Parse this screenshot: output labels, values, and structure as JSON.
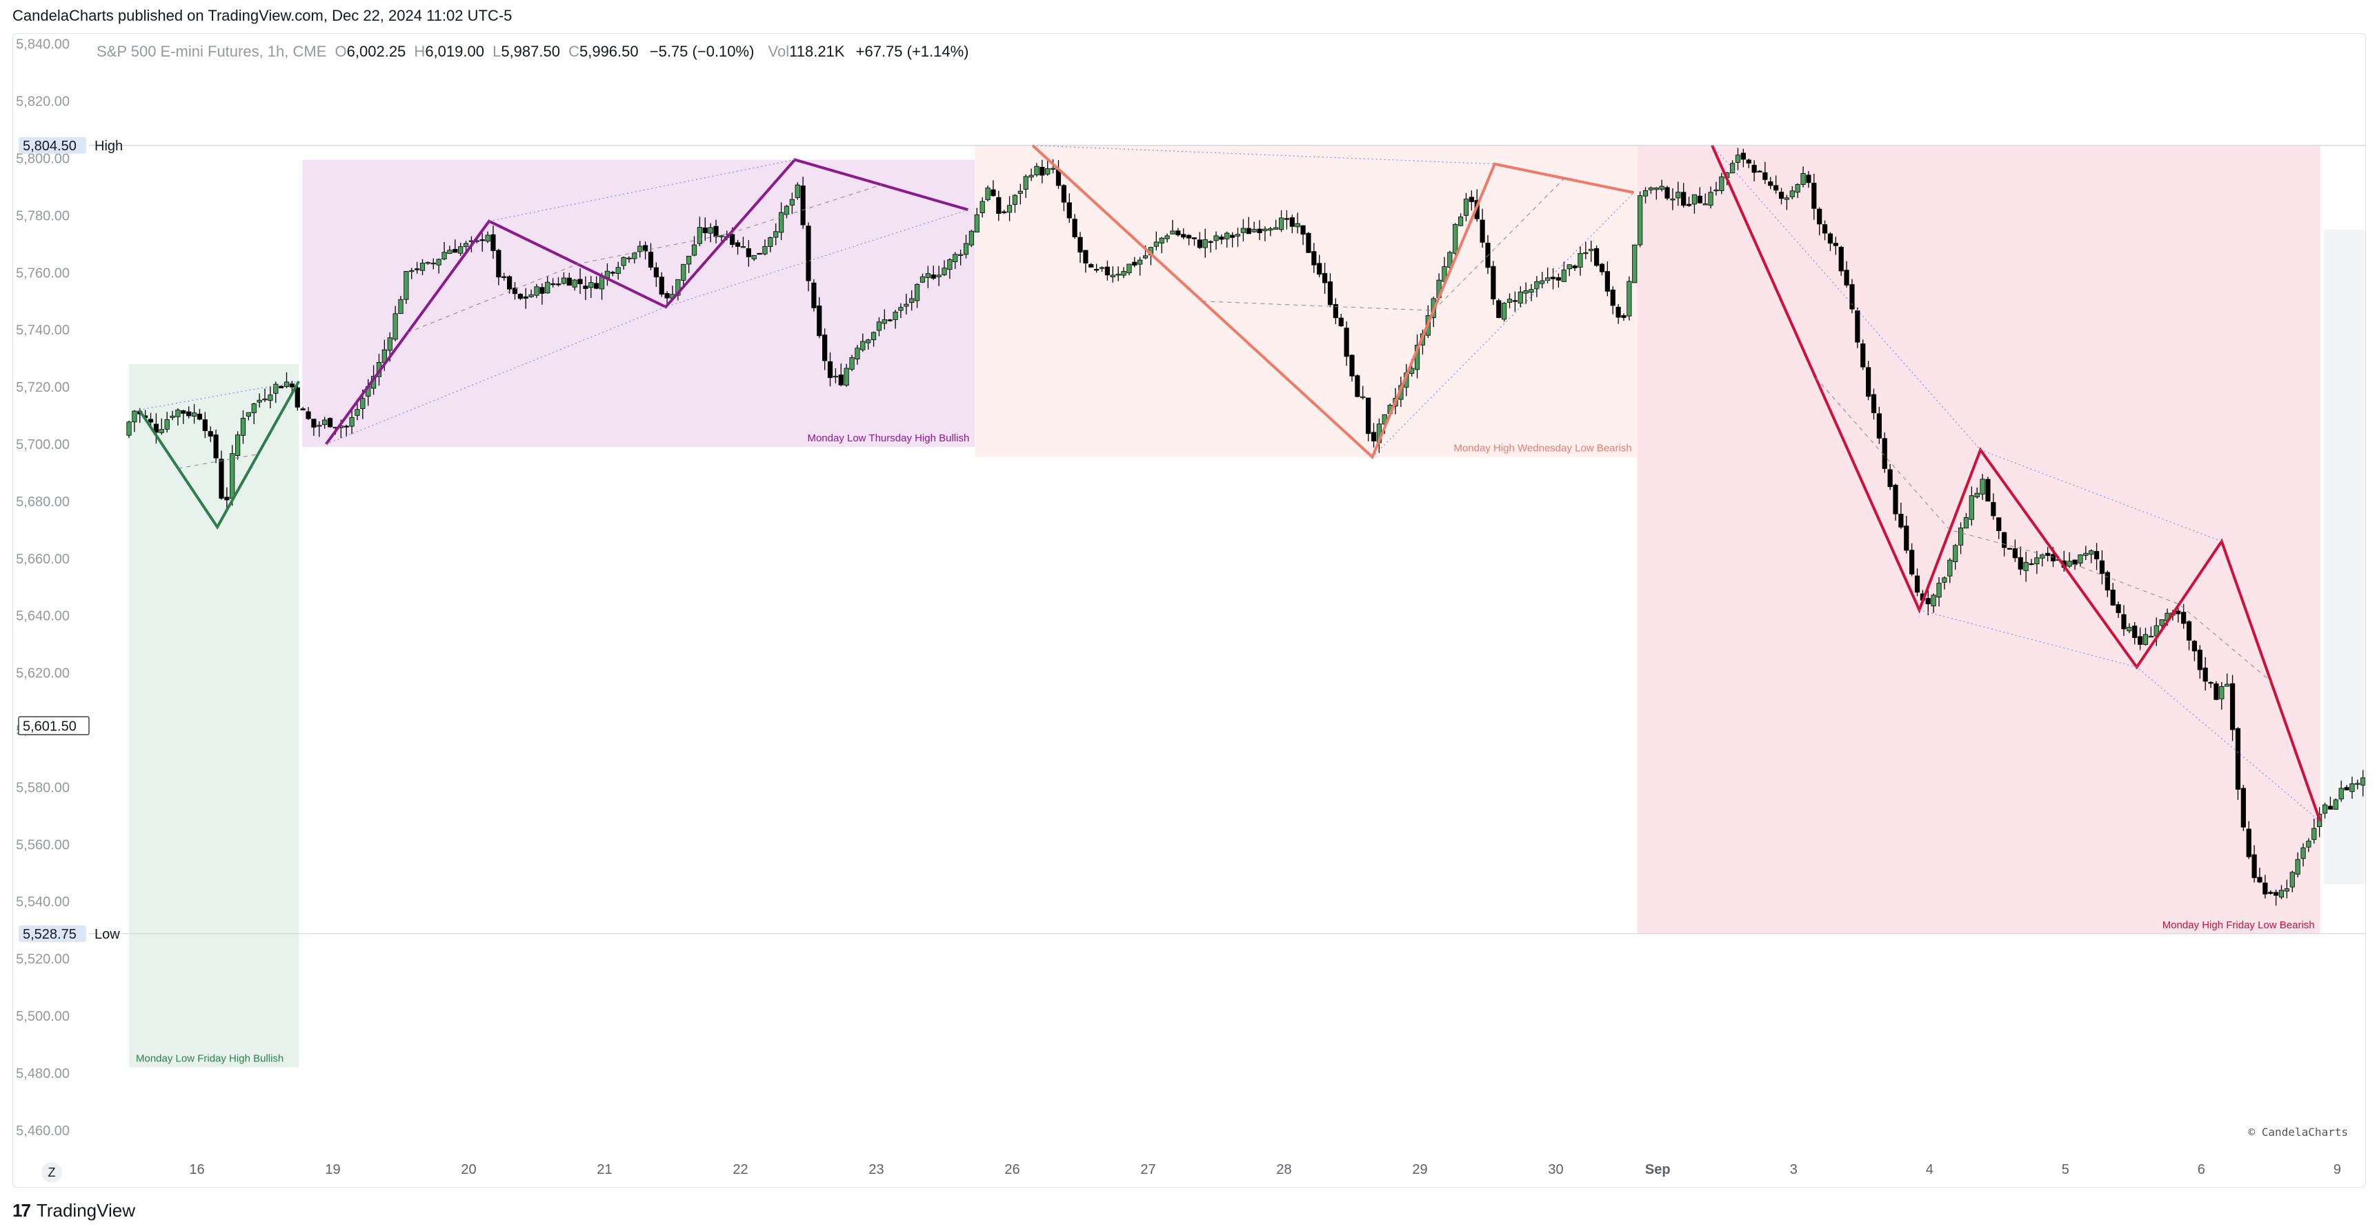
{
  "header": {
    "published": "CandelaCharts published on TradingView.com, Dec 22, 2024 11:02 UTC-5"
  },
  "legend": {
    "symbol": "S&P 500 E-mini Futures, 1h, CME",
    "o_label": "O",
    "o_value": "6,002.25",
    "h_label": "H",
    "h_value": "6,019.00",
    "l_label": "L",
    "l_value": "5,987.50",
    "c_label": "C",
    "c_value": "5,996.50",
    "change": "−5.75 (−0.10%)",
    "vol_label": "Vol",
    "vol_value": "118.21K",
    "vol_change": "+67.75 (+1.14%)"
  },
  "footer": {
    "logo": "17",
    "brand": "TradingView",
    "zoom_button": "Z"
  },
  "credit": "© CandelaCharts",
  "colors": {
    "up": "#4a9d5b",
    "down": "#000000",
    "green": "#2e7d4f",
    "purple": "#8b1a8b",
    "salmon": "#f07a6a",
    "crimson": "#d0103a"
  },
  "chart_data": {
    "type": "candlestick",
    "title": "S&P 500 E-mini Futures, 1h, CME",
    "ylim": [
      5450,
      5845
    ],
    "y_ticks": [
      5460,
      5480,
      5500,
      5520,
      5540,
      5560,
      5580,
      5600,
      5620,
      5640,
      5660,
      5680,
      5700,
      5720,
      5740,
      5760,
      5780,
      5800,
      5820,
      5840
    ],
    "y_tick_labels": [
      "5,460.00",
      "5,480.00",
      "5,500.00",
      "5,520.00",
      "5,540.00",
      "5,560.00",
      "5,580.00",
      "5,600.00",
      "5,620.00",
      "5,640.00",
      "5,660.00",
      "5,680.00",
      "5,700.00",
      "5,720.00",
      "5,740.00",
      "5,760.00",
      "5,780.00",
      "5,800.00",
      "5,820.00",
      "5,840.00"
    ],
    "x_ticks": [
      {
        "t": 1.0,
        "label": "16"
      },
      {
        "t": 3.0,
        "label": "19"
      },
      {
        "t": 5.0,
        "label": "20"
      },
      {
        "t": 7.0,
        "label": "21"
      },
      {
        "t": 9.0,
        "label": "22"
      },
      {
        "t": 11.0,
        "label": "23"
      },
      {
        "t": 13.0,
        "label": "26"
      },
      {
        "t": 15.0,
        "label": "27"
      },
      {
        "t": 17.0,
        "label": "28"
      },
      {
        "t": 19.0,
        "label": "29"
      },
      {
        "t": 21.0,
        "label": "30"
      },
      {
        "t": 22.5,
        "label": "Sep"
      },
      {
        "t": 24.5,
        "label": "3"
      },
      {
        "t": 26.5,
        "label": "4"
      },
      {
        "t": 28.5,
        "label": "5"
      },
      {
        "t": 30.5,
        "label": "6"
      },
      {
        "t": 32.5,
        "label": "9"
      }
    ],
    "levels": [
      {
        "name": "High",
        "value": 5804.5,
        "label": "5,804.50"
      },
      {
        "name": "Low",
        "value": 5528.75,
        "label": "5,528.75"
      }
    ],
    "current_price": {
      "value": 5601.5,
      "label": "5,601.50"
    },
    "anchors": [
      {
        "t": 0.0,
        "p": 5703
      },
      {
        "t": 0.15,
        "p": 5712
      },
      {
        "t": 0.5,
        "p": 5705
      },
      {
        "t": 0.75,
        "p": 5712
      },
      {
        "t": 1.15,
        "p": 5710
      },
      {
        "t": 1.38,
        "p": 5694
      },
      {
        "t": 1.45,
        "p": 5680
      },
      {
        "t": 1.5,
        "p": 5678
      },
      {
        "t": 1.6,
        "p": 5695
      },
      {
        "t": 1.75,
        "p": 5710
      },
      {
        "t": 2.2,
        "p": 5720
      },
      {
        "t": 2.45,
        "p": 5722
      },
      {
        "t": 2.6,
        "p": 5712
      },
      {
        "t": 2.8,
        "p": 5706
      },
      {
        "t": 3.0,
        "p": 5708
      },
      {
        "t": 3.3,
        "p": 5706
      },
      {
        "t": 3.5,
        "p": 5715
      },
      {
        "t": 3.8,
        "p": 5730
      },
      {
        "t": 4.0,
        "p": 5745
      },
      {
        "t": 4.2,
        "p": 5762
      },
      {
        "t": 4.5,
        "p": 5762
      },
      {
        "t": 4.75,
        "p": 5768
      },
      {
        "t": 5.2,
        "p": 5770
      },
      {
        "t": 5.35,
        "p": 5775
      },
      {
        "t": 5.5,
        "p": 5760
      },
      {
        "t": 5.8,
        "p": 5750
      },
      {
        "t": 6.2,
        "p": 5755
      },
      {
        "t": 6.5,
        "p": 5758
      },
      {
        "t": 6.9,
        "p": 5755
      },
      {
        "t": 7.2,
        "p": 5762
      },
      {
        "t": 7.6,
        "p": 5770
      },
      {
        "t": 8.0,
        "p": 5750
      },
      {
        "t": 8.3,
        "p": 5765
      },
      {
        "t": 8.5,
        "p": 5775
      },
      {
        "t": 8.9,
        "p": 5773
      },
      {
        "t": 9.3,
        "p": 5765
      },
      {
        "t": 9.7,
        "p": 5780
      },
      {
        "t": 9.95,
        "p": 5790
      },
      {
        "t": 10.05,
        "p": 5762
      },
      {
        "t": 10.2,
        "p": 5740
      },
      {
        "t": 10.4,
        "p": 5723
      },
      {
        "t": 10.55,
        "p": 5722
      },
      {
        "t": 10.8,
        "p": 5735
      },
      {
        "t": 11.2,
        "p": 5743
      },
      {
        "t": 11.5,
        "p": 5748
      },
      {
        "t": 11.8,
        "p": 5758
      },
      {
        "t": 12.1,
        "p": 5762
      },
      {
        "t": 12.4,
        "p": 5770
      },
      {
        "t": 12.7,
        "p": 5790
      },
      {
        "t": 12.9,
        "p": 5780
      },
      {
        "t": 13.1,
        "p": 5785
      },
      {
        "t": 13.35,
        "p": 5796
      },
      {
        "t": 13.7,
        "p": 5795
      },
      {
        "t": 13.95,
        "p": 5775
      },
      {
        "t": 14.2,
        "p": 5760
      },
      {
        "t": 14.6,
        "p": 5760
      },
      {
        "t": 15.0,
        "p": 5765
      },
      {
        "t": 15.4,
        "p": 5775
      },
      {
        "t": 15.8,
        "p": 5770
      },
      {
        "t": 16.2,
        "p": 5772
      },
      {
        "t": 16.6,
        "p": 5775
      },
      {
        "t": 17.0,
        "p": 5778
      },
      {
        "t": 17.3,
        "p": 5775
      },
      {
        "t": 17.6,
        "p": 5760
      },
      {
        "t": 17.9,
        "p": 5742
      },
      {
        "t": 18.1,
        "p": 5720
      },
      {
        "t": 18.25,
        "p": 5715
      },
      {
        "t": 18.35,
        "p": 5700
      },
      {
        "t": 18.6,
        "p": 5710
      },
      {
        "t": 19.0,
        "p": 5730
      },
      {
        "t": 19.4,
        "p": 5760
      },
      {
        "t": 19.8,
        "p": 5790
      },
      {
        "t": 20.0,
        "p": 5770
      },
      {
        "t": 20.2,
        "p": 5745
      },
      {
        "t": 20.5,
        "p": 5752
      },
      {
        "t": 20.8,
        "p": 5755
      },
      {
        "t": 21.2,
        "p": 5760
      },
      {
        "t": 21.6,
        "p": 5768
      },
      {
        "t": 21.9,
        "p": 5752
      },
      {
        "t": 22.05,
        "p": 5740
      },
      {
        "t": 22.2,
        "p": 5765
      },
      {
        "t": 22.35,
        "p": 5790
      },
      {
        "t": 22.7,
        "p": 5788
      },
      {
        "t": 23.0,
        "p": 5785
      },
      {
        "t": 23.3,
        "p": 5786
      },
      {
        "t": 23.6,
        "p": 5795
      },
      {
        "t": 23.8,
        "p": 5801
      },
      {
        "t": 24.0,
        "p": 5797
      },
      {
        "t": 24.2,
        "p": 5789
      },
      {
        "t": 24.5,
        "p": 5787
      },
      {
        "t": 24.75,
        "p": 5795
      },
      {
        "t": 24.95,
        "p": 5776
      },
      {
        "t": 25.2,
        "p": 5770
      },
      {
        "t": 25.4,
        "p": 5750
      },
      {
        "t": 25.7,
        "p": 5715
      },
      {
        "t": 25.95,
        "p": 5690
      },
      {
        "t": 26.15,
        "p": 5670
      },
      {
        "t": 26.4,
        "p": 5648
      },
      {
        "t": 26.6,
        "p": 5645
      },
      {
        "t": 26.9,
        "p": 5660
      },
      {
        "t": 27.2,
        "p": 5680
      },
      {
        "t": 27.35,
        "p": 5688
      },
      {
        "t": 27.6,
        "p": 5668
      },
      {
        "t": 27.9,
        "p": 5656
      },
      {
        "t": 28.2,
        "p": 5660
      },
      {
        "t": 28.6,
        "p": 5658
      },
      {
        "t": 29.0,
        "p": 5662
      },
      {
        "t": 29.2,
        "p": 5650
      },
      {
        "t": 29.45,
        "p": 5636
      },
      {
        "t": 29.7,
        "p": 5630
      },
      {
        "t": 29.95,
        "p": 5638
      },
      {
        "t": 30.25,
        "p": 5640
      },
      {
        "t": 30.55,
        "p": 5622
      },
      {
        "t": 30.8,
        "p": 5612
      },
      {
        "t": 30.95,
        "p": 5620
      },
      {
        "t": 31.15,
        "p": 5572
      },
      {
        "t": 31.35,
        "p": 5548
      },
      {
        "t": 31.55,
        "p": 5544
      },
      {
        "t": 31.75,
        "p": 5543
      },
      {
        "t": 31.95,
        "p": 5550
      },
      {
        "t": 32.15,
        "p": 5562
      },
      {
        "t": 32.4,
        "p": 5572
      },
      {
        "t": 32.7,
        "p": 5580
      },
      {
        "t": 33.0,
        "p": 5583
      },
      {
        "t": 33.25,
        "p": 5585
      },
      {
        "t": 33.45,
        "p": 5598
      },
      {
        "t": 33.65,
        "p": 5605
      },
      {
        "t": 33.9,
        "p": 5601.5
      }
    ],
    "ranges": [
      {
        "t0": 0.0,
        "t1": 2.5,
        "p0": 5482,
        "p1": 5728,
        "fill": "#e7f2ec",
        "label": "Monday Low Friday High Bullish",
        "label_color": "#2e7d4f",
        "zigzag": [
          [
            0.15,
            5712
          ],
          [
            1.3,
            5671
          ],
          [
            2.5,
            5722
          ]
        ],
        "line_color": "#2e7d4f"
      },
      {
        "t0": 2.55,
        "t1": 12.45,
        "p0": 5699,
        "p1": 5799.5,
        "fill": "#f2e2f4",
        "label": "Monday Low Thursday High Bullish",
        "label_color": "#8b1a8b",
        "zigzag": [
          [
            2.9,
            5700
          ],
          [
            5.3,
            5778
          ],
          [
            7.9,
            5748
          ],
          [
            9.8,
            5799.5
          ],
          [
            12.35,
            5782
          ]
        ],
        "line_color": "#8b1a8b"
      },
      {
        "t0": 12.45,
        "t1": 22.2,
        "p0": 5695.5,
        "p1": 5804.5,
        "fill": "#fdf0ef",
        "label": "Monday High Wednesday Low Bearish",
        "label_color": "#f07a6a",
        "zigzag": [
          [
            13.3,
            5804.5
          ],
          [
            18.3,
            5695.5
          ],
          [
            20.1,
            5798
          ],
          [
            22.15,
            5788
          ]
        ],
        "line_color": "#f07a6a"
      },
      {
        "t0": 22.2,
        "t1": 32.25,
        "p0": 5528.75,
        "p1": 5804.5,
        "fill": "#fbe4ea",
        "label": "Monday High Friday Low Bearish",
        "label_color": "#d0103a",
        "zigzag": [
          [
            23.3,
            5804.5
          ],
          [
            26.35,
            5642
          ],
          [
            27.25,
            5698
          ],
          [
            29.55,
            5622
          ],
          [
            30.8,
            5666
          ],
          [
            32.25,
            5568
          ]
        ],
        "line_color": "#d0103a"
      },
      {
        "t0": 32.3,
        "t1": 34.6,
        "p0": 5546,
        "p1": 5775,
        "fill": "#f3f4f6",
        "label": "",
        "label_color": "#000000",
        "zigzag": [],
        "line_color": "#000000"
      }
    ]
  }
}
